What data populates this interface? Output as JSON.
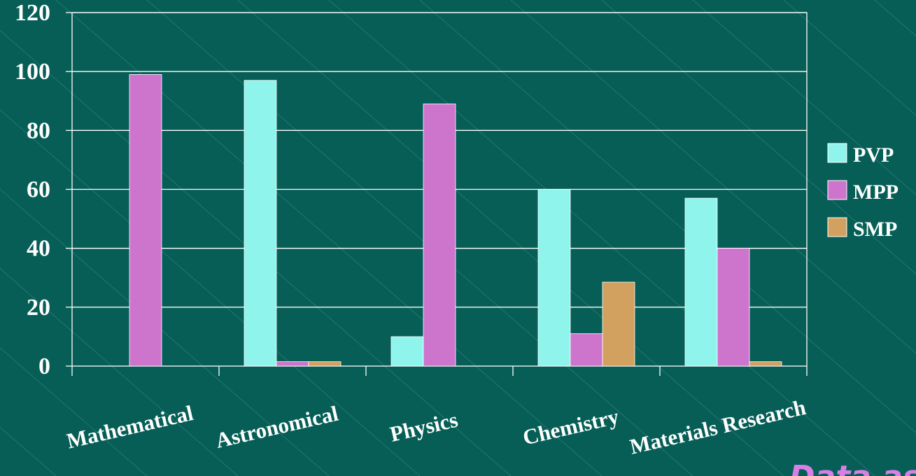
{
  "colors": {
    "background": "#065e56",
    "plot_border": "#ffffff",
    "gridline": "#ffffff",
    "PVP": "#8ff5ec",
    "MPP": "#cd74cd",
    "SMP": "#d2a15f",
    "note": "#d77fe4"
  },
  "chart_data": {
    "type": "bar",
    "title": "",
    "xlabel": "",
    "ylabel": "",
    "ylim": [
      0,
      120
    ],
    "yticks": [
      0,
      20,
      40,
      60,
      80,
      100,
      120
    ],
    "grid": true,
    "legend_position": "right",
    "categories": [
      "Mathematical",
      "Astronomical",
      "Physics",
      "Chemistry",
      "Materials Research"
    ],
    "series": [
      {
        "name": "PVP",
        "values": [
          0,
          97,
          10,
          60,
          57
        ]
      },
      {
        "name": "MPP",
        "values": [
          99,
          1.5,
          89,
          11,
          40
        ]
      },
      {
        "name": "SMP",
        "values": [
          0,
          1.5,
          0,
          28.5,
          1.5
        ]
      }
    ]
  },
  "note": "Data as of"
}
